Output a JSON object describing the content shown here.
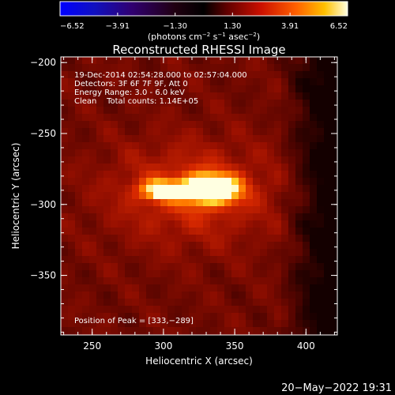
{
  "chart_data": {
    "type": "heatmap",
    "title": "Reconstructed RHESSI Image",
    "xlabel": "Heliocentric X (arcsec)",
    "ylabel": "Heliocentric Y (arcsec)",
    "xlim": [
      228,
      422
    ],
    "ylim": [
      -392,
      -196
    ],
    "x_ticks": [
      250,
      300,
      350,
      400
    ],
    "y_ticks": [
      -200,
      -250,
      -300,
      -350
    ],
    "colorbar": {
      "min": -6.52,
      "max": 6.52,
      "tick_values": [
        -6.52,
        -3.91,
        -1.3,
        1.3,
        3.91,
        6.52
      ],
      "tick_labels": [
        "−6.52",
        "−3.91",
        "−1.30",
        "1.30",
        "3.91",
        "6.52"
      ],
      "units_parts": [
        "(photons cm",
        "−2",
        " s",
        "−1",
        " asec",
        "−2",
        ")"
      ]
    },
    "annotations": {
      "time_range": "19-Dec-2014 02:54:28.000 to 02:57:04.000",
      "detectors": "Detectors: 3F 6F 7F 9F, Att 0",
      "energy_range": "Energy Range: 3.0 - 6.0 keV",
      "clean": "Clean    Total counts: 1.14E+05",
      "peak": "Position of Peak = [333,−289]"
    },
    "sources": [
      {
        "x": 333,
        "y": -289,
        "peak": 6.52
      },
      {
        "x": 296,
        "y": -290,
        "peak": 3.6
      }
    ],
    "footer_date": "20−May−2022 19:31"
  }
}
